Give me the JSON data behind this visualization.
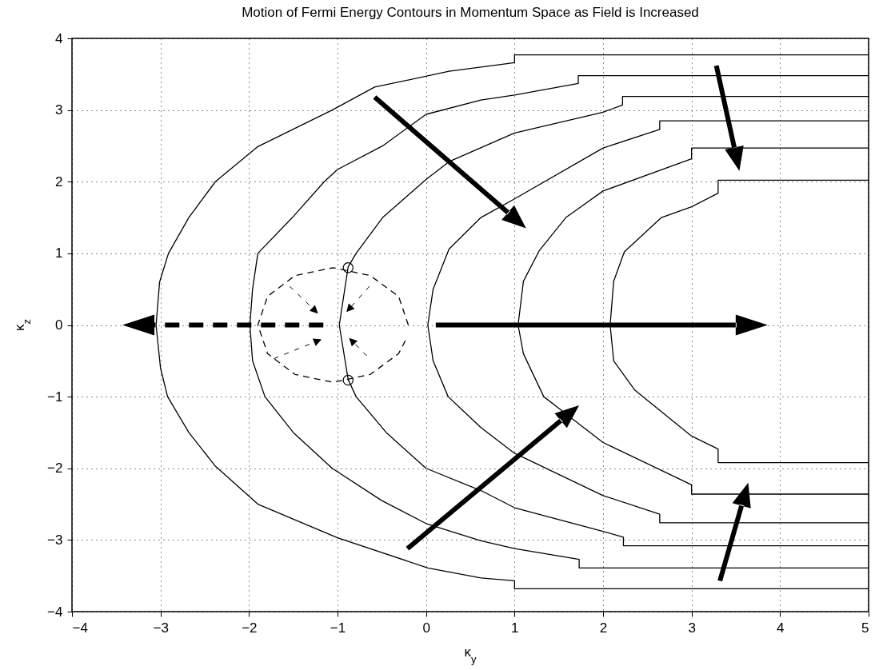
{
  "chart_data": {
    "type": "line",
    "title": "Motion of Fermi Energy Contours in Momentum Space as Field is Increased",
    "xlabel": "κ$_{y}$",
    "ylabel": "κ$_{z}$",
    "xlim": [
      -4,
      5
    ],
    "ylim": [
      -4,
      4
    ],
    "xticks": [
      -4,
      -3,
      -2,
      -1,
      0,
      1,
      2,
      3,
      4,
      5
    ],
    "yticks": [
      -4,
      -3,
      -2,
      -1,
      0,
      1,
      2,
      3,
      4
    ],
    "grid": true,
    "series": [
      {
        "color": "#000000",
        "x": [
          5,
          1.0,
          1.0,
          0.26,
          -0.58,
          -1.06,
          -1.9,
          -2.38,
          -2.68,
          -2.91,
          -3.01,
          -3.05,
          -3.0,
          -2.92,
          -2.68,
          -2.38,
          -1.9,
          -1.0,
          0.02,
          0.62,
          1.0,
          1.0,
          5
        ],
        "values": [
          3.77,
          3.77,
          3.66,
          3.54,
          3.32,
          3.0,
          2.49,
          2.0,
          1.5,
          1.0,
          0.6,
          0,
          -0.6,
          -1.0,
          -1.5,
          -1.97,
          -2.5,
          -2.97,
          -3.39,
          -3.53,
          -3.57,
          -3.68,
          -3.68
        ]
      },
      {
        "color": "#000000",
        "x": [
          5,
          1.72,
          1.72,
          1.0,
          0.62,
          0.0,
          -0.49,
          -1.0,
          -1.15,
          -1.51,
          -1.9,
          -1.96,
          -1.99,
          -1.96,
          -1.82,
          -1.5,
          -1.06,
          -0.5,
          0.0,
          0.62,
          1.0,
          1.73,
          1.73,
          5
        ],
        "values": [
          3.48,
          3.48,
          3.37,
          3.21,
          3.14,
          2.94,
          2.5,
          2.17,
          2.0,
          1.5,
          1.0,
          0.5,
          0,
          -0.5,
          -1.0,
          -1.5,
          -2.0,
          -2.45,
          -2.77,
          -3.01,
          -3.12,
          -3.27,
          -3.39,
          -3.39
        ]
      },
      {
        "color": "#000000",
        "x": [
          5,
          2.22,
          2.22,
          2.0,
          1.0,
          0.26,
          0.0,
          -0.49,
          -0.79,
          -0.88,
          -0.98,
          -0.88,
          -0.79,
          -0.45,
          0.0,
          0.62,
          1.0,
          2.0,
          2.23,
          2.23,
          5
        ],
        "values": [
          3.19,
          3.19,
          3.07,
          2.97,
          2.68,
          2.28,
          2.03,
          1.5,
          1.0,
          0.81,
          0,
          -0.76,
          -1.0,
          -1.5,
          -2.0,
          -2.31,
          -2.55,
          -2.88,
          -2.96,
          -3.08,
          -3.08
        ]
      },
      {
        "color": "#000000",
        "x": [
          5,
          2.64,
          2.64,
          2.0,
          1.0,
          0.62,
          0.26,
          0.08,
          0.02,
          0.08,
          0.25,
          0.62,
          1.0,
          2.0,
          2.64,
          2.64,
          5
        ],
        "values": [
          2.85,
          2.85,
          2.73,
          2.47,
          1.76,
          1.5,
          1.06,
          0.5,
          0,
          -0.5,
          -1.0,
          -1.43,
          -1.79,
          -2.38,
          -2.64,
          -2.76,
          -2.76
        ]
      },
      {
        "color": "#000000",
        "x": [
          5,
          3.0,
          3.0,
          2.0,
          1.58,
          1.28,
          1.1,
          1.04,
          1.1,
          1.33,
          2.0,
          3.0,
          3.0,
          5
        ],
        "values": [
          2.47,
          2.47,
          2.32,
          1.87,
          1.5,
          1.04,
          0.61,
          0,
          -0.4,
          -1.0,
          -1.64,
          -2.23,
          -2.36,
          -2.36
        ]
      },
      {
        "color": "#000000",
        "x": [
          5,
          3.3,
          3.3,
          3.0,
          2.66,
          2.24,
          2.12,
          2.08,
          2.12,
          2.36,
          3.0,
          3.3,
          3.3,
          5
        ],
        "values": [
          2.02,
          2.02,
          1.84,
          1.65,
          1.5,
          1.02,
          0.61,
          0,
          -0.5,
          -0.91,
          -1.55,
          -1.73,
          -1.92,
          -1.92
        ]
      },
      {
        "color": "#000000",
        "line_style": "dashed",
        "x": [
          -0.2,
          -0.31,
          -0.63,
          -1.05,
          -1.48,
          -1.79,
          -1.9,
          -1.79,
          -1.48,
          -1.05,
          -0.63,
          -0.31,
          -0.23
        ],
        "values": [
          0,
          0.4,
          0.69,
          0.8,
          0.69,
          0.4,
          0,
          -0.4,
          -0.69,
          -0.8,
          -0.69,
          -0.4,
          -0.21
        ]
      },
      {
        "type": "scatter",
        "marker": "circle",
        "color": "#000000",
        "x": [
          -0.88,
          -0.88
        ],
        "values": [
          0.8,
          -0.77
        ]
      }
    ]
  }
}
